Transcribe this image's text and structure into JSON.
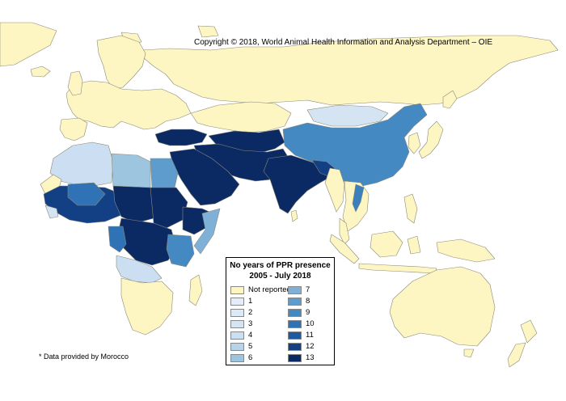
{
  "copyright": "Copyright © 2018, World Animal Health Information and Analysis Department – OIE",
  "footnote": "* Data provided by Morocco",
  "legend": {
    "title_line1": "No years of PPR presence",
    "title_line2": "2005 - July 2018",
    "items": [
      {
        "label": "Not reported",
        "color": "#fdf6c3"
      },
      {
        "label": "1",
        "color": "#e3eef9"
      },
      {
        "label": "2",
        "color": "#dde9f6"
      },
      {
        "label": "3",
        "color": "#d5e4f3"
      },
      {
        "label": "4",
        "color": "#ccdff2"
      },
      {
        "label": "5",
        "color": "#b8d4ea"
      },
      {
        "label": "6",
        "color": "#9ec5e0"
      },
      {
        "label": "7",
        "color": "#7fb0d8"
      },
      {
        "label": "8",
        "color": "#5d9ccc"
      },
      {
        "label": "9",
        "color": "#4589c3"
      },
      {
        "label": "10",
        "color": "#2f72b5"
      },
      {
        "label": "11",
        "color": "#1f5aa0"
      },
      {
        "label": "12",
        "color": "#133f85"
      },
      {
        "label": "13",
        "color": "#0b2a63"
      }
    ]
  },
  "colors": {
    "water": "#ffffff",
    "border": "#808080",
    "not_reported": "#fdf6c3"
  }
}
